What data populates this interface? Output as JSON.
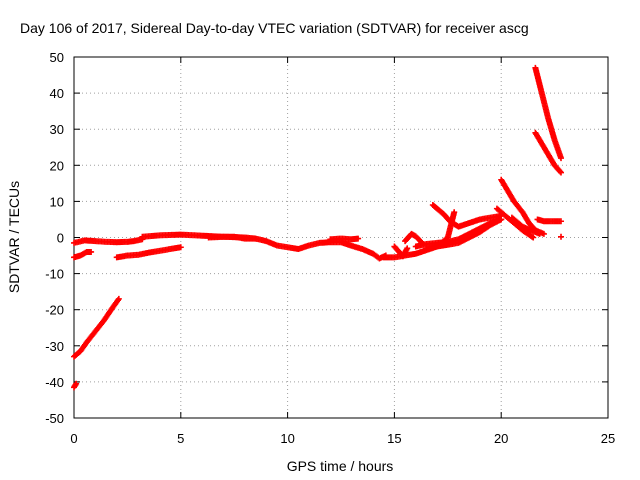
{
  "chart_data": {
    "type": "scatter",
    "title": "Day 106 of 2017, Sidereal Day-to-day VTEC variation (SDTVAR) for receiver ascg",
    "xlabel": "GPS time / hours",
    "ylabel": "SDTVAR / TECUs",
    "xlim": [
      0,
      25
    ],
    "ylim": [
      -50,
      50
    ],
    "xticks": [
      "0",
      "5",
      "10",
      "15",
      "20",
      "25"
    ],
    "yticks": [
      "-50",
      "-40",
      "-30",
      "-20",
      "-10",
      "0",
      "10",
      "20",
      "30",
      "40",
      "50"
    ],
    "grid": true,
    "marker": "+",
    "series_color": "#ff0000",
    "traces": [
      {
        "x": [
          0.0,
          0.3,
          0.6,
          1.0,
          1.4,
          1.8,
          2.1
        ],
        "y": [
          -33,
          -31.5,
          -29,
          -26,
          -23,
          -19.5,
          -17
        ]
      },
      {
        "x": [
          0.0,
          0.1
        ],
        "y": [
          -41.5,
          -40.5
        ]
      },
      {
        "x": [
          0.0,
          0.3,
          0.6,
          0.8
        ],
        "y": [
          -5.5,
          -5,
          -4,
          -4
        ]
      },
      {
        "x": [
          0.0,
          0.5,
          1.0,
          1.5,
          2.0,
          2.5,
          2.8,
          3.2
        ],
        "y": [
          -1.5,
          -0.8,
          -1,
          -1.2,
          -1.3,
          -1.2,
          -1,
          -0.5
        ]
      },
      {
        "x": [
          2.0,
          2.5,
          3.0,
          3.5,
          4.0,
          4.5,
          5.0
        ],
        "y": [
          -5.5,
          -5,
          -4.8,
          -4.2,
          -3.7,
          -3.2,
          -2.7
        ]
      },
      {
        "x": [
          3.2,
          4.0,
          5.0,
          6.0,
          7.0,
          8.0,
          8.5
        ],
        "y": [
          0.2,
          0.6,
          0.8,
          0.5,
          0.2,
          0,
          -0.3
        ]
      },
      {
        "x": [
          6.3,
          7.0,
          7.5,
          8.0,
          8.5,
          9.0,
          9.5,
          10.0,
          10.5,
          11.0,
          11.5,
          12.0,
          12.5,
          13.0,
          13.5,
          14.0,
          14.3,
          14.6
        ],
        "y": [
          0,
          0.2,
          0.2,
          -0.3,
          -0.3,
          -1,
          -2.2,
          -2.7,
          -3.2,
          -2.2,
          -1.5,
          -1.3,
          -1.3,
          -2.3,
          -3.2,
          -4.5,
          -5.8,
          -5
        ]
      },
      {
        "x": [
          12.0,
          12.5,
          13.0,
          13.3
        ],
        "y": [
          -0.5,
          -0.3,
          -0.5,
          -0.3
        ]
      },
      {
        "x": [
          14.5,
          15.0,
          15.5,
          16.0,
          16.5,
          17.0,
          17.5,
          18.0,
          18.5,
          19.0,
          19.5,
          20.0
        ],
        "y": [
          -5.5,
          -5.5,
          -5,
          -4.5,
          -3.5,
          -2.5,
          -2,
          -1.5,
          0,
          1.5,
          3.5,
          5
        ]
      },
      {
        "x": [
          15.0,
          15.4,
          15.6
        ],
        "y": [
          -2.5,
          -5.2,
          -3
        ]
      },
      {
        "x": [
          15.5,
          15.8,
          16.0,
          16.3
        ],
        "y": [
          -1,
          1,
          0.3,
          -1.5
        ]
      },
      {
        "x": [
          16.0,
          16.5,
          17.0,
          17.5,
          18.0,
          18.5,
          19.0,
          19.5,
          20.0
        ],
        "y": [
          -2.5,
          -1.8,
          -1.5,
          -1.2,
          -0.5,
          1,
          2.5,
          4,
          5
        ]
      },
      {
        "x": [
          16.8,
          17.0,
          17.3,
          17.6,
          18.0,
          18.5,
          19.0,
          19.5,
          20.0
        ],
        "y": [
          9,
          8,
          6.5,
          4.5,
          3,
          4,
          5,
          5.5,
          6
        ]
      },
      {
        "x": [
          16.5,
          17.0,
          17.5,
          17.8
        ],
        "y": [
          -3,
          -2.5,
          0,
          7
        ]
      },
      {
        "x": [
          20.0,
          20.3,
          20.6,
          21.0,
          21.3,
          21.6,
          22.0
        ],
        "y": [
          16,
          13,
          10,
          7,
          4,
          2,
          1
        ]
      },
      {
        "x": [
          19.8,
          20.2,
          20.6,
          21.0,
          21.5
        ],
        "y": [
          8,
          6,
          4,
          2,
          0
        ]
      },
      {
        "x": [
          20.5,
          21.0,
          21.4,
          21.8
        ],
        "y": [
          5.5,
          3,
          2,
          1
        ]
      },
      {
        "x": [
          21.6,
          21.9,
          22.2,
          22.5,
          22.8
        ],
        "y": [
          47,
          40,
          33,
          27,
          22
        ]
      },
      {
        "x": [
          21.6,
          21.9,
          22.2,
          22.5,
          22.8
        ],
        "y": [
          29,
          26,
          23,
          20,
          18
        ]
      },
      {
        "x": [
          21.7,
          22.0,
          22.4,
          22.8
        ],
        "y": [
          5,
          4.5,
          4.5,
          4.5
        ]
      },
      {
        "x": [
          22.8
        ],
        "y": [
          0.2
        ]
      }
    ]
  }
}
